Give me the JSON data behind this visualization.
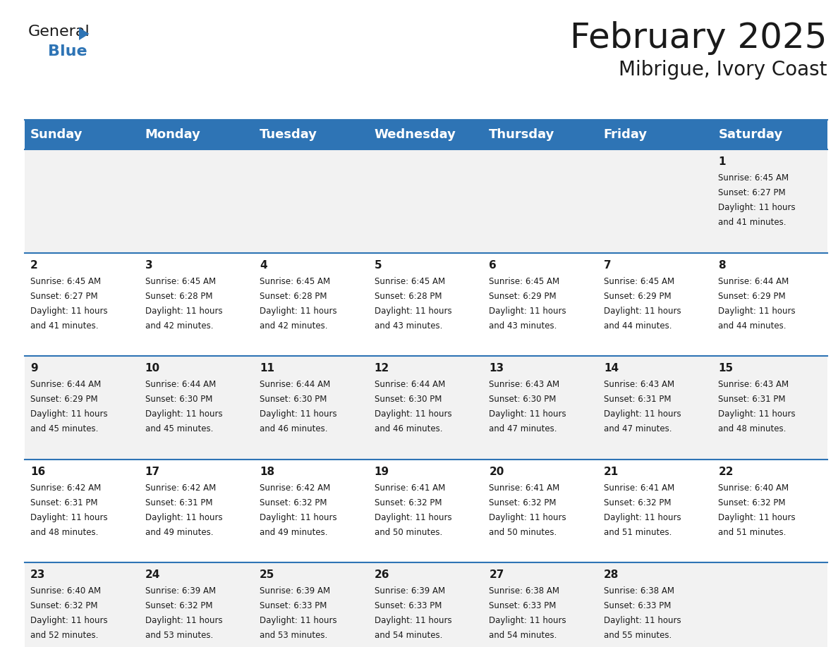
{
  "title": "February 2025",
  "subtitle": "Mibrigue, Ivory Coast",
  "header_bg": "#2E74B5",
  "header_text_color": "#FFFFFF",
  "cell_bg_odd": "#F2F2F2",
  "cell_bg_even": "#FFFFFF",
  "day_headers": [
    "Sunday",
    "Monday",
    "Tuesday",
    "Wednesday",
    "Thursday",
    "Friday",
    "Saturday"
  ],
  "weeks": [
    [
      {
        "day": "",
        "sunrise": "",
        "sunset": "",
        "daylight": ""
      },
      {
        "day": "",
        "sunrise": "",
        "sunset": "",
        "daylight": ""
      },
      {
        "day": "",
        "sunrise": "",
        "sunset": "",
        "daylight": ""
      },
      {
        "day": "",
        "sunrise": "",
        "sunset": "",
        "daylight": ""
      },
      {
        "day": "",
        "sunrise": "",
        "sunset": "",
        "daylight": ""
      },
      {
        "day": "",
        "sunrise": "",
        "sunset": "",
        "daylight": ""
      },
      {
        "day": "1",
        "sunrise": "6:45 AM",
        "sunset": "6:27 PM",
        "daylight": "11 hours\nand 41 minutes."
      }
    ],
    [
      {
        "day": "2",
        "sunrise": "6:45 AM",
        "sunset": "6:27 PM",
        "daylight": "11 hours\nand 41 minutes."
      },
      {
        "day": "3",
        "sunrise": "6:45 AM",
        "sunset": "6:28 PM",
        "daylight": "11 hours\nand 42 minutes."
      },
      {
        "day": "4",
        "sunrise": "6:45 AM",
        "sunset": "6:28 PM",
        "daylight": "11 hours\nand 42 minutes."
      },
      {
        "day": "5",
        "sunrise": "6:45 AM",
        "sunset": "6:28 PM",
        "daylight": "11 hours\nand 43 minutes."
      },
      {
        "day": "6",
        "sunrise": "6:45 AM",
        "sunset": "6:29 PM",
        "daylight": "11 hours\nand 43 minutes."
      },
      {
        "day": "7",
        "sunrise": "6:45 AM",
        "sunset": "6:29 PM",
        "daylight": "11 hours\nand 44 minutes."
      },
      {
        "day": "8",
        "sunrise": "6:44 AM",
        "sunset": "6:29 PM",
        "daylight": "11 hours\nand 44 minutes."
      }
    ],
    [
      {
        "day": "9",
        "sunrise": "6:44 AM",
        "sunset": "6:29 PM",
        "daylight": "11 hours\nand 45 minutes."
      },
      {
        "day": "10",
        "sunrise": "6:44 AM",
        "sunset": "6:30 PM",
        "daylight": "11 hours\nand 45 minutes."
      },
      {
        "day": "11",
        "sunrise": "6:44 AM",
        "sunset": "6:30 PM",
        "daylight": "11 hours\nand 46 minutes."
      },
      {
        "day": "12",
        "sunrise": "6:44 AM",
        "sunset": "6:30 PM",
        "daylight": "11 hours\nand 46 minutes."
      },
      {
        "day": "13",
        "sunrise": "6:43 AM",
        "sunset": "6:30 PM",
        "daylight": "11 hours\nand 47 minutes."
      },
      {
        "day": "14",
        "sunrise": "6:43 AM",
        "sunset": "6:31 PM",
        "daylight": "11 hours\nand 47 minutes."
      },
      {
        "day": "15",
        "sunrise": "6:43 AM",
        "sunset": "6:31 PM",
        "daylight": "11 hours\nand 48 minutes."
      }
    ],
    [
      {
        "day": "16",
        "sunrise": "6:42 AM",
        "sunset": "6:31 PM",
        "daylight": "11 hours\nand 48 minutes."
      },
      {
        "day": "17",
        "sunrise": "6:42 AM",
        "sunset": "6:31 PM",
        "daylight": "11 hours\nand 49 minutes."
      },
      {
        "day": "18",
        "sunrise": "6:42 AM",
        "sunset": "6:32 PM",
        "daylight": "11 hours\nand 49 minutes."
      },
      {
        "day": "19",
        "sunrise": "6:41 AM",
        "sunset": "6:32 PM",
        "daylight": "11 hours\nand 50 minutes."
      },
      {
        "day": "20",
        "sunrise": "6:41 AM",
        "sunset": "6:32 PM",
        "daylight": "11 hours\nand 50 minutes."
      },
      {
        "day": "21",
        "sunrise": "6:41 AM",
        "sunset": "6:32 PM",
        "daylight": "11 hours\nand 51 minutes."
      },
      {
        "day": "22",
        "sunrise": "6:40 AM",
        "sunset": "6:32 PM",
        "daylight": "11 hours\nand 51 minutes."
      }
    ],
    [
      {
        "day": "23",
        "sunrise": "6:40 AM",
        "sunset": "6:32 PM",
        "daylight": "11 hours\nand 52 minutes."
      },
      {
        "day": "24",
        "sunrise": "6:39 AM",
        "sunset": "6:32 PM",
        "daylight": "11 hours\nand 53 minutes."
      },
      {
        "day": "25",
        "sunrise": "6:39 AM",
        "sunset": "6:33 PM",
        "daylight": "11 hours\nand 53 minutes."
      },
      {
        "day": "26",
        "sunrise": "6:39 AM",
        "sunset": "6:33 PM",
        "daylight": "11 hours\nand 54 minutes."
      },
      {
        "day": "27",
        "sunrise": "6:38 AM",
        "sunset": "6:33 PM",
        "daylight": "11 hours\nand 54 minutes."
      },
      {
        "day": "28",
        "sunrise": "6:38 AM",
        "sunset": "6:33 PM",
        "daylight": "11 hours\nand 55 minutes."
      },
      {
        "day": "",
        "sunrise": "",
        "sunset": "",
        "daylight": ""
      }
    ]
  ],
  "logo_text_general": "General",
  "logo_text_blue": "Blue",
  "logo_color_general": "#1a1a1a",
  "logo_color_blue": "#2E74B5",
  "logo_triangle_color": "#2E74B5",
  "title_fontsize": 36,
  "subtitle_fontsize": 20,
  "header_fontsize": 13,
  "day_number_fontsize": 11,
  "cell_text_fontsize": 8.5,
  "line_color": "#2E74B5"
}
